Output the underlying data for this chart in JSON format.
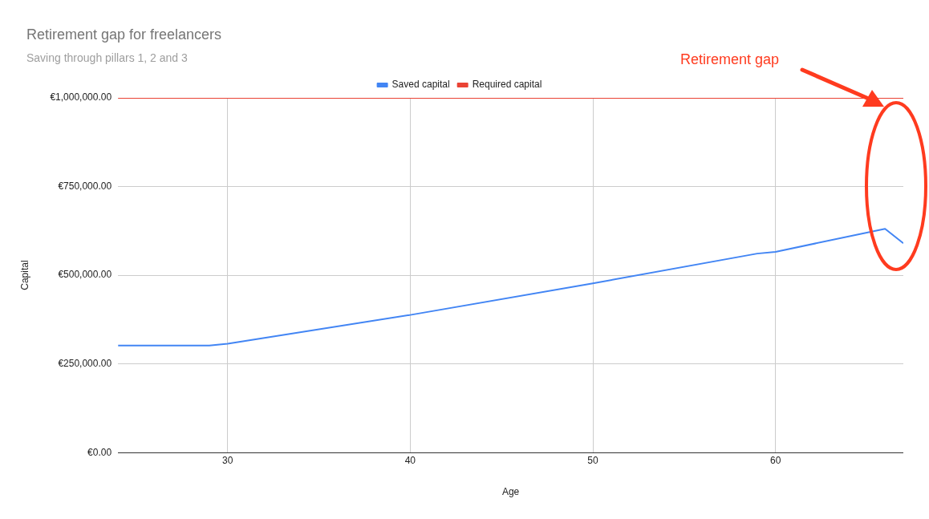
{
  "chart_data": {
    "type": "line",
    "title": "Retirement gap for freelancers",
    "subtitle": "Saving through pillars 1, 2 and 3",
    "xlabel": "Age",
    "ylabel": "Capital",
    "x": [
      24,
      29,
      30,
      40,
      50,
      59,
      60,
      66,
      67
    ],
    "series": [
      {
        "name": "Saved capital",
        "color": "#4285f4",
        "values": [
          302000,
          302000,
          307000,
          388000,
          477000,
          561000,
          566000,
          631000,
          590000
        ]
      },
      {
        "name": "Required capital",
        "color": "#ea4335",
        "values": [
          1000000,
          1000000,
          1000000,
          1000000,
          1000000,
          1000000,
          1000000,
          1000000,
          1000000
        ]
      }
    ],
    "xlim": [
      24,
      67
    ],
    "xticks": [
      30,
      40,
      50,
      60
    ],
    "ylim": [
      0,
      1000000
    ],
    "yticks": [
      {
        "value": 0,
        "label": "€0.00"
      },
      {
        "value": 250000,
        "label": "€250,000.00"
      },
      {
        "value": 500000,
        "label": "€500,000.00"
      },
      {
        "value": 750000,
        "label": "€750,000.00"
      },
      {
        "value": 1000000,
        "label": "€1,000,000.00"
      }
    ],
    "grid": true,
    "legend": "top",
    "marker": "none",
    "line_style": "solid",
    "annotations": [
      "Retirement gap"
    ]
  }
}
